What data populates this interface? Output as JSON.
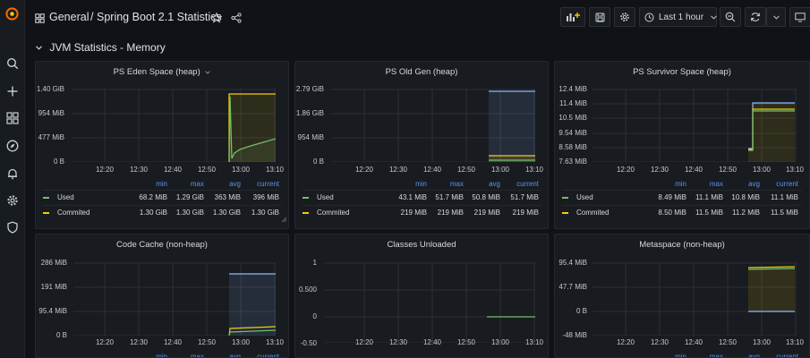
{
  "app": {
    "breadcrumb_folder": "General",
    "separator": "/",
    "dashboard_title": "Spring Boot 2.1 Statistics",
    "time_range": "Last 1 hour"
  },
  "icons": {
    "logo": "grafana-logo-icon",
    "search": "search-icon",
    "create": "plus-icon",
    "dashboards": "dashboards-grid-icon",
    "explore": "compass-icon",
    "alerting": "bell-icon",
    "configuration": "gear-icon",
    "server_admin": "shield-icon"
  },
  "colors": {
    "used": "#73bf69",
    "committed": "#f2cc0c",
    "max": "#8ab8ff",
    "accent": "#5794f2",
    "brand": "#f46800"
  },
  "row": {
    "title": "JVM Statistics - Memory"
  },
  "legend_headers": [
    "min",
    "max",
    "avg",
    "current"
  ],
  "panels": [
    {
      "title": "PS Eden Space (heap)",
      "yticks": [
        "1.40 GiB",
        "954 MiB",
        "477 MiB",
        "0 B"
      ],
      "xticks": [
        "12:20",
        "12:30",
        "12:40",
        "12:50",
        "13:00",
        "13:10"
      ],
      "legend": [
        {
          "name": "Used",
          "color": "#73bf69",
          "values": [
            "68.2 MiB",
            "1.29 GiB",
            "363 MiB",
            "396 MiB"
          ]
        },
        {
          "name": "Commited",
          "color": "#f2cc0c",
          "values": [
            "1.30 GiB",
            "1.30 GiB",
            "1.30 GiB",
            "1.30 GiB"
          ]
        }
      ]
    },
    {
      "title": "PS Old Gen (heap)",
      "yticks": [
        "2.79 GiB",
        "1.86 GiB",
        "954 MiB",
        "0 B"
      ],
      "xticks": [
        "12:20",
        "12:30",
        "12:40",
        "12:50",
        "13:00",
        "13:10"
      ],
      "legend": [
        {
          "name": "Used",
          "color": "#73bf69",
          "values": [
            "43.1 MiB",
            "51.7 MiB",
            "50.8 MiB",
            "51.7 MiB"
          ]
        },
        {
          "name": "Commited",
          "color": "#f2cc0c",
          "values": [
            "219 MiB",
            "219 MiB",
            "219 MiB",
            "219 MiB"
          ]
        }
      ]
    },
    {
      "title": "PS Survivor Space (heap)",
      "yticks": [
        "12.4 MiB",
        "11.4 MiB",
        "10.5 MiB",
        "9.54 MiB",
        "8.58 MiB",
        "7.63 MiB"
      ],
      "xticks": [
        "12:20",
        "12:30",
        "12:40",
        "12:50",
        "13:00",
        "13:10"
      ],
      "legend": [
        {
          "name": "Used",
          "color": "#73bf69",
          "values": [
            "8.49 MiB",
            "11.1 MiB",
            "10.8 MiB",
            "11.1 MiB"
          ]
        },
        {
          "name": "Commited",
          "color": "#f2cc0c",
          "values": [
            "8.50 MiB",
            "11.5 MiB",
            "11.2 MiB",
            "11.5 MiB"
          ]
        }
      ]
    },
    {
      "title": "Code Cache (non-heap)",
      "yticks": [
        "286 MiB",
        "191 MiB",
        "95.4 MiB",
        "0 B"
      ],
      "xticks": [
        "12:20",
        "12:30",
        "12:40",
        "12:50",
        "13:00",
        "13:10"
      ]
    },
    {
      "title": "Classes Unloaded",
      "yticks": [
        "1",
        "0.500",
        "0",
        "-0.50"
      ],
      "xticks": [
        "12:20",
        "12:30",
        "12:40",
        "12:50",
        "13:00",
        "13:10"
      ]
    },
    {
      "title": "Metaspace (non-heap)",
      "yticks": [
        "95.4 MiB",
        "47.7 MiB",
        "0 B",
        "-48 MiB"
      ],
      "xticks": [
        "12:20",
        "12:30",
        "12:40",
        "12:50",
        "13:00",
        "13:10"
      ]
    }
  ]
}
